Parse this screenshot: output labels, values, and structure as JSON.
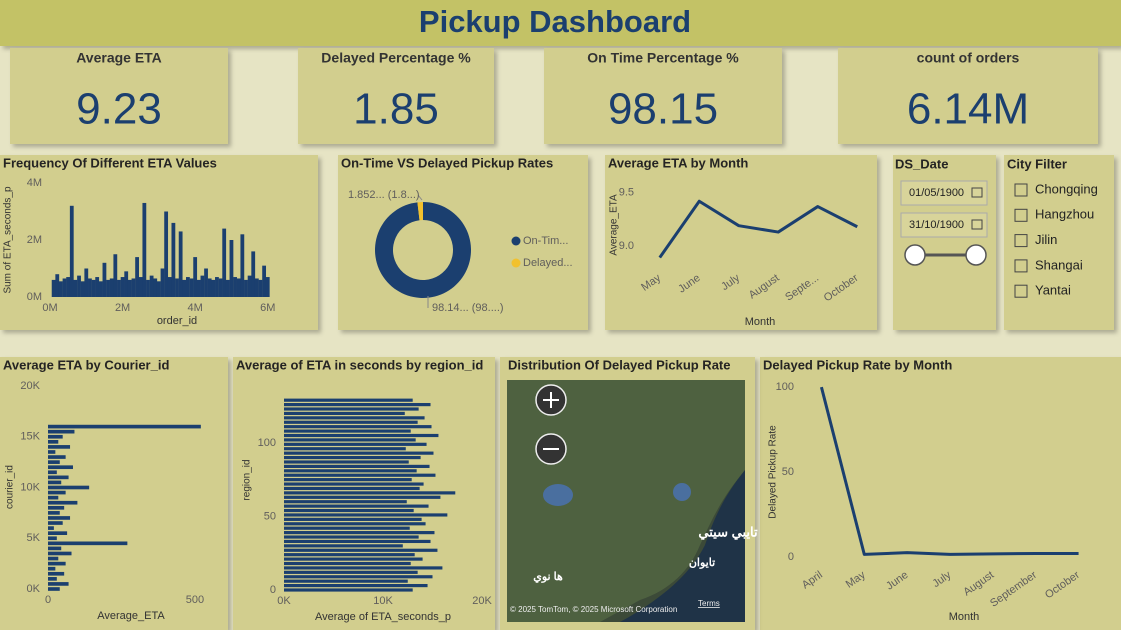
{
  "header": {
    "title": "Pickup Dashboard"
  },
  "kpis": [
    {
      "label": "Average ETA",
      "value": 9.23
    },
    {
      "label": "Delayed Percentage %",
      "value": 1.85
    },
    {
      "label": "On Time Percentage %",
      "value": 98.15
    },
    {
      "label": "count of orders",
      "value": "6.14M"
    }
  ],
  "chart_data": [
    {
      "type": "bar",
      "title": "Frequency Of Different ETA Values",
      "x_label": "order_id",
      "y_label": "Sum of ETA_seconds_p",
      "color": "#1b3f6f",
      "x": [
        100000,
        200000,
        300000,
        400000,
        500000,
        600000,
        700000,
        800000,
        900000,
        1000000,
        1100000,
        1200000,
        1300000,
        1400000,
        1500000,
        1600000,
        1700000,
        1800000,
        1900000,
        2000000,
        2100000,
        2200000,
        2300000,
        2400000,
        2500000,
        2600000,
        2700000,
        2800000,
        2900000,
        3000000,
        3100000,
        3200000,
        3300000,
        3400000,
        3500000,
        3600000,
        3700000,
        3800000,
        3900000,
        4000000,
        4100000,
        4200000,
        4300000,
        4400000,
        4500000,
        4600000,
        4700000,
        4800000,
        4900000,
        5000000,
        5100000,
        5200000,
        5300000,
        5400000,
        5500000,
        5600000,
        5700000,
        5800000,
        5900000,
        6000000
      ],
      "values": [
        600000,
        800000,
        550000,
        650000,
        700000,
        3200000,
        600000,
        750000,
        550000,
        1000000,
        650000,
        600000,
        700000,
        550000,
        1200000,
        600000,
        650000,
        1500000,
        600000,
        700000,
        900000,
        600000,
        650000,
        1400000,
        700000,
        3300000,
        600000,
        750000,
        650000,
        550000,
        1000000,
        3000000,
        700000,
        2600000,
        650000,
        2300000,
        600000,
        700000,
        650000,
        1400000,
        600000,
        750000,
        1000000,
        650000,
        600000,
        700000,
        650000,
        2400000,
        600000,
        2000000,
        700000,
        650000,
        2200000,
        600000,
        750000,
        1600000,
        650000,
        600000,
        1100000,
        700000
      ],
      "xlim": [
        0,
        6200000
      ],
      "xticks": [
        {
          "value": 0,
          "label": "0M"
        },
        {
          "value": 2000000,
          "label": "2M"
        },
        {
          "value": 4000000,
          "label": "4M"
        },
        {
          "value": 6000000,
          "label": "6M"
        }
      ],
      "ylim": [
        0,
        4000000
      ],
      "yticks": [
        {
          "value": 0,
          "label": "0M"
        },
        {
          "value": 2000000,
          "label": "2M"
        },
        {
          "value": 4000000,
          "label": "4M"
        }
      ]
    },
    {
      "type": "pie",
      "title": "On-Time VS Delayed Pickup Rates",
      "donut": true,
      "legend": "right",
      "categories": [
        "On-Tim...",
        "Delayed..."
      ],
      "values": [
        98.148,
        1.852
      ],
      "value_labels": [
        "98.14... (98....)",
        "1.852... (1.8...)"
      ],
      "colors": [
        "#1b3f6f",
        "#f2c12e"
      ]
    },
    {
      "type": "line",
      "title": "Average ETA by Month",
      "x_label": "Month",
      "y_label": "Average_ETA",
      "color": "#1b3f6f",
      "categories": [
        "May",
        "June",
        "July",
        "August",
        "Septe...",
        "October"
      ],
      "values": [
        8.89,
        9.42,
        9.19,
        9.13,
        9.37,
        9.18
      ],
      "ylim": [
        8.82,
        9.62
      ],
      "yticks": [
        {
          "value": 9,
          "label": "9.0"
        },
        {
          "value": 9.5,
          "label": "9.5"
        }
      ]
    },
    {
      "type": "bar",
      "orientation": "horizontal",
      "title": "Average ETA by Courier_id",
      "x_label": "Average_ETA",
      "y_label": "courier_id",
      "color": "#1b3f6f",
      "y": [
        0,
        500,
        1000,
        1500,
        2000,
        2500,
        3000,
        3500,
        4000,
        4500,
        5000,
        5500,
        6000,
        6500,
        7000,
        7500,
        8000,
        8500,
        9000,
        9500,
        10000,
        10500,
        11000,
        11500,
        12000,
        12500,
        13000,
        13500,
        14000,
        14500,
        15000,
        15500,
        16000
      ],
      "values": [
        40,
        70,
        30,
        55,
        25,
        60,
        35,
        80,
        45,
        270,
        30,
        65,
        20,
        50,
        75,
        40,
        55,
        100,
        35,
        60,
        140,
        45,
        70,
        30,
        85,
        40,
        60,
        25,
        75,
        35,
        50,
        90,
        520
      ],
      "xlim": [
        0,
        560
      ],
      "xticks": [
        0,
        500
      ],
      "ylim": [
        0,
        20000
      ],
      "yticks": [
        {
          "value": 0,
          "label": "0K"
        },
        {
          "value": 5000,
          "label": "5K"
        },
        {
          "value": 10000,
          "label": "10K"
        },
        {
          "value": 15000,
          "label": "15K"
        },
        {
          "value": 20000,
          "label": "20K"
        }
      ]
    },
    {
      "type": "bar",
      "orientation": "horizontal",
      "title": "Average of ETA in seconds by region_id",
      "x_label": "Average of ETA_seconds_p",
      "y_label": "region_id",
      "color": "#1b3f6f",
      "y": [
        0,
        3,
        6,
        9,
        12,
        15,
        18,
        21,
        24,
        27,
        30,
        33,
        36,
        39,
        42,
        45,
        48,
        51,
        54,
        57,
        60,
        63,
        66,
        69,
        72,
        75,
        78,
        81,
        84,
        87,
        90,
        93,
        96,
        99,
        102,
        105,
        108,
        111,
        114,
        117,
        120,
        123,
        126,
        129
      ],
      "values": [
        13000,
        14500,
        12500,
        15000,
        13500,
        16000,
        12800,
        14000,
        13200,
        15500,
        12000,
        14800,
        13600,
        15200,
        12700,
        14300,
        13900,
        16500,
        13100,
        14600,
        12400,
        15800,
        17300,
        13700,
        14100,
        12900,
        15300,
        13400,
        14700,
        12600,
        13800,
        15100,
        12300,
        14400,
        13300,
        15600,
        12800,
        14900,
        13500,
        14200,
        12200,
        13600,
        14800,
        13000
      ],
      "xlim": [
        0,
        20000
      ],
      "xticks": [
        {
          "value": 0,
          "label": "0K"
        },
        {
          "value": 10000,
          "label": "10K"
        },
        {
          "value": 20000,
          "label": "20K"
        }
      ],
      "ylim": [
        0,
        140
      ],
      "yticks": [
        0,
        50,
        100
      ]
    },
    {
      "type": "line",
      "title": "Delayed Pickup Rate by Month",
      "x_label": "Month",
      "y_label": "Delayed Pickup Rate",
      "color": "#1b3f6f",
      "categories": [
        "April",
        "May",
        "June",
        "July",
        "August",
        "September",
        "October"
      ],
      "values": [
        100,
        1.5,
        2.5,
        1.5,
        1.8,
        2,
        2
      ],
      "ylim": [
        -3,
        103
      ],
      "yticks": [
        0,
        50,
        100
      ]
    }
  ],
  "map": {
    "title": "Distribution Of Delayed Pickup Rate",
    "places": [
      "تايبي سيتي",
      "ها نوي",
      "تايوان"
    ],
    "attribution": "© 2025 TomTom, © 2025 Microsoft Corporation",
    "terms": "Terms"
  },
  "date_slicer": {
    "title": "DS_Date",
    "start": "01/05/1900",
    "end": "31/10/1900"
  },
  "city_filter": {
    "title": "City Filter",
    "options": [
      "Chongqing",
      "Hangzhou",
      "Jilin",
      "Shangai",
      "Yantai"
    ]
  }
}
